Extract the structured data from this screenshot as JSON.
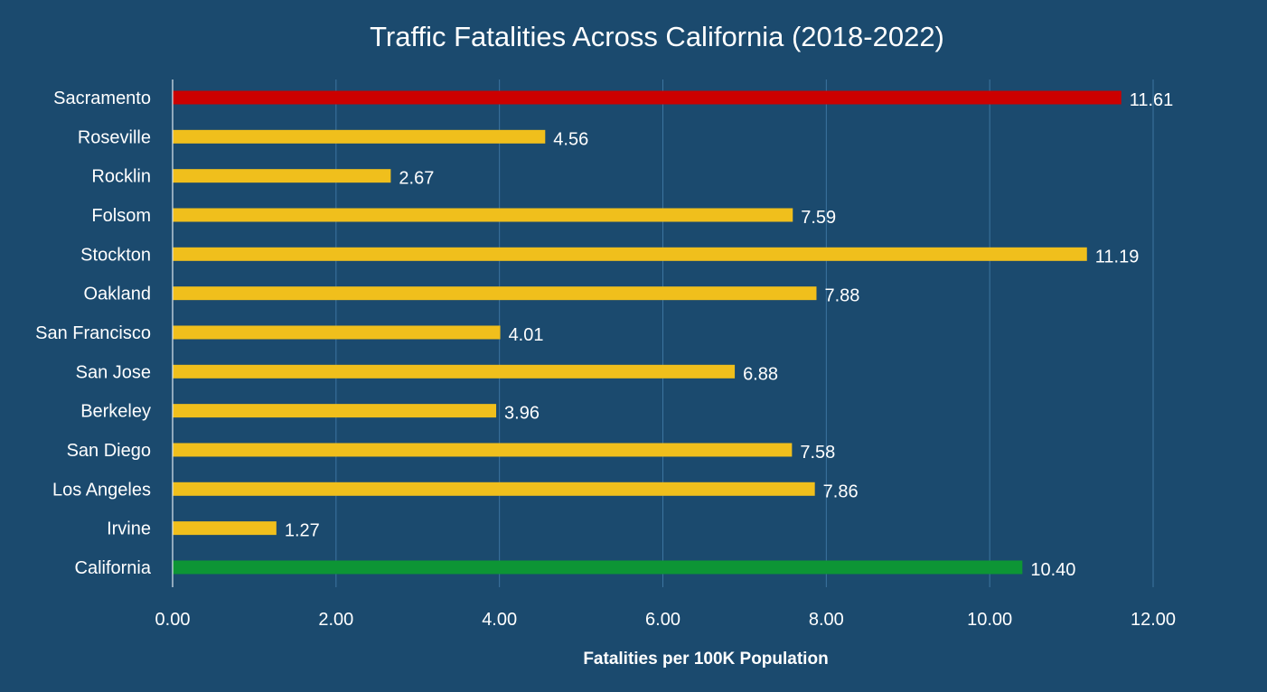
{
  "chart_data": {
    "type": "bar",
    "orientation": "horizontal",
    "title": "Traffic Fatalities Across California (2018-2022)",
    "xlabel": "Fatalities per 100K Population",
    "ylabel": "",
    "xlim": [
      0,
      12
    ],
    "xticks": [
      0,
      2,
      4,
      6,
      8,
      10,
      12
    ],
    "xtick_labels": [
      "0.00",
      "2.00",
      "4.00",
      "6.00",
      "8.00",
      "10.00",
      "12.00"
    ],
    "grid": true,
    "legend": "none",
    "categories": [
      "Sacramento",
      "Roseville",
      "Rocklin",
      "Folsom",
      "Stockton",
      "Oakland",
      "San Francisco",
      "San Jose",
      "Berkeley",
      "San Diego",
      "Los Angeles",
      "Irvine",
      "California"
    ],
    "values": [
      11.61,
      4.56,
      2.67,
      7.59,
      11.19,
      7.88,
      4.01,
      6.88,
      3.96,
      7.58,
      7.86,
      1.27,
      10.4
    ],
    "value_labels": [
      "11.61",
      "4.56",
      "2.67",
      "7.59",
      "11.19",
      "7.88",
      "4.01",
      "6.88",
      "3.96",
      "7.58",
      "7.86",
      "1.27",
      "10.40"
    ],
    "bar_colors": [
      "#cc0000",
      "#f0bf1c",
      "#f0bf1c",
      "#f0bf1c",
      "#f0bf1c",
      "#f0bf1c",
      "#f0bf1c",
      "#f0bf1c",
      "#f0bf1c",
      "#f0bf1c",
      "#f0bf1c",
      "#f0bf1c",
      "#0d9535"
    ]
  },
  "colors": {
    "background": "#1b4a6e",
    "highlight": "#cc0000",
    "default_bar": "#f0bf1c",
    "state_average": "#0d9535",
    "text": "#ffffff"
  }
}
